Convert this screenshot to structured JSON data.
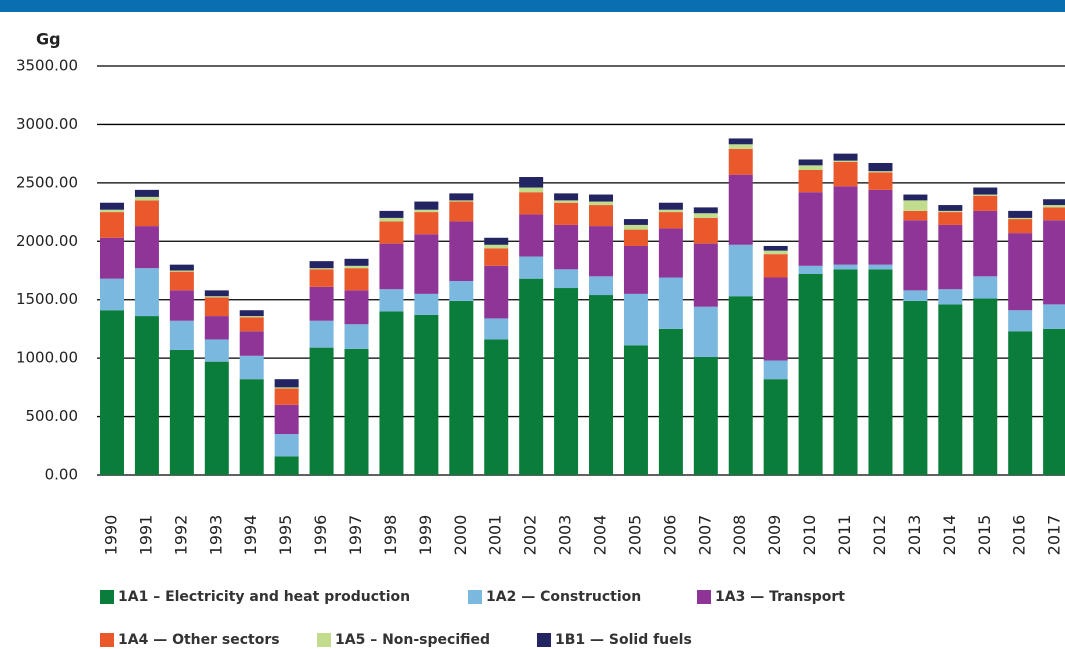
{
  "chart_data": {
    "type": "stacked_bar",
    "y_axis_label": "Gg",
    "categories": [
      "1990",
      "1991",
      "1992",
      "1993",
      "1994",
      "1995",
      "1996",
      "1997",
      "1998",
      "1999",
      "2000",
      "2001",
      "2002",
      "2003",
      "2004",
      "2005",
      "2006",
      "2007",
      "2008",
      "2009",
      "2010",
      "2011",
      "2012",
      "2013",
      "2014",
      "2015",
      "2016",
      "2017"
    ],
    "series": [
      {
        "name": "1A1 – Electricity and heat production",
        "color": "#0a7d3b",
        "values": [
          1410,
          1360,
          1070,
          970,
          820,
          160,
          1090,
          1080,
          1400,
          1370,
          1490,
          1160,
          1680,
          1600,
          1540,
          1110,
          1250,
          1010,
          1530,
          820,
          1720,
          1760,
          1760,
          1490,
          1460,
          1510,
          1230,
          1250
        ]
      },
      {
        "name": "1A2 — Construction",
        "color": "#7bb8e0",
        "values": [
          270,
          410,
          250,
          190,
          200,
          190,
          230,
          210,
          190,
          180,
          170,
          180,
          190,
          160,
          160,
          440,
          440,
          430,
          440,
          160,
          70,
          40,
          40,
          90,
          130,
          190,
          180,
          210
        ]
      },
      {
        "name": "1A3 — Transport",
        "color": "#8e3597",
        "values": [
          350,
          360,
          260,
          200,
          210,
          250,
          290,
          290,
          390,
          510,
          510,
          450,
          360,
          380,
          430,
          410,
          420,
          540,
          600,
          710,
          630,
          670,
          640,
          600,
          550,
          560,
          660,
          720
        ]
      },
      {
        "name": "1A4 — Other sectors",
        "color": "#e9592b",
        "values": [
          220,
          220,
          160,
          160,
          120,
          140,
          150,
          190,
          190,
          190,
          170,
          150,
          190,
          190,
          180,
          140,
          140,
          220,
          220,
          200,
          190,
          210,
          150,
          80,
          110,
          130,
          120,
          110
        ]
      },
      {
        "name": "1A5 – Non-specified",
        "color": "#c2dc8e",
        "values": [
          20,
          30,
          10,
          10,
          10,
          10,
          10,
          20,
          30,
          20,
          10,
          30,
          40,
          20,
          30,
          40,
          20,
          40,
          40,
          30,
          40,
          10,
          10,
          90,
          10,
          10,
          10,
          20
        ]
      },
      {
        "name": "1B1 — Solid fuels",
        "color": "#232562",
        "values": [
          60,
          60,
          50,
          50,
          50,
          70,
          60,
          60,
          60,
          70,
          60,
          60,
          90,
          60,
          60,
          50,
          60,
          50,
          50,
          40,
          50,
          60,
          70,
          50,
          50,
          60,
          60,
          50
        ]
      }
    ],
    "ylim": [
      0,
      3500
    ],
    "yticks": [
      {
        "value": 0,
        "label": "0.00"
      },
      {
        "value": 500,
        "label": "500.00"
      },
      {
        "value": 1000,
        "label": "1000.00"
      },
      {
        "value": 1500,
        "label": "1500.00"
      },
      {
        "value": 2000,
        "label": "2000.00"
      },
      {
        "value": 2500,
        "label": "2500.00"
      },
      {
        "value": 3000,
        "label": "3000.00"
      },
      {
        "value": 3500,
        "label": "3500.00"
      }
    ],
    "grid": true,
    "legend": "bottom"
  }
}
